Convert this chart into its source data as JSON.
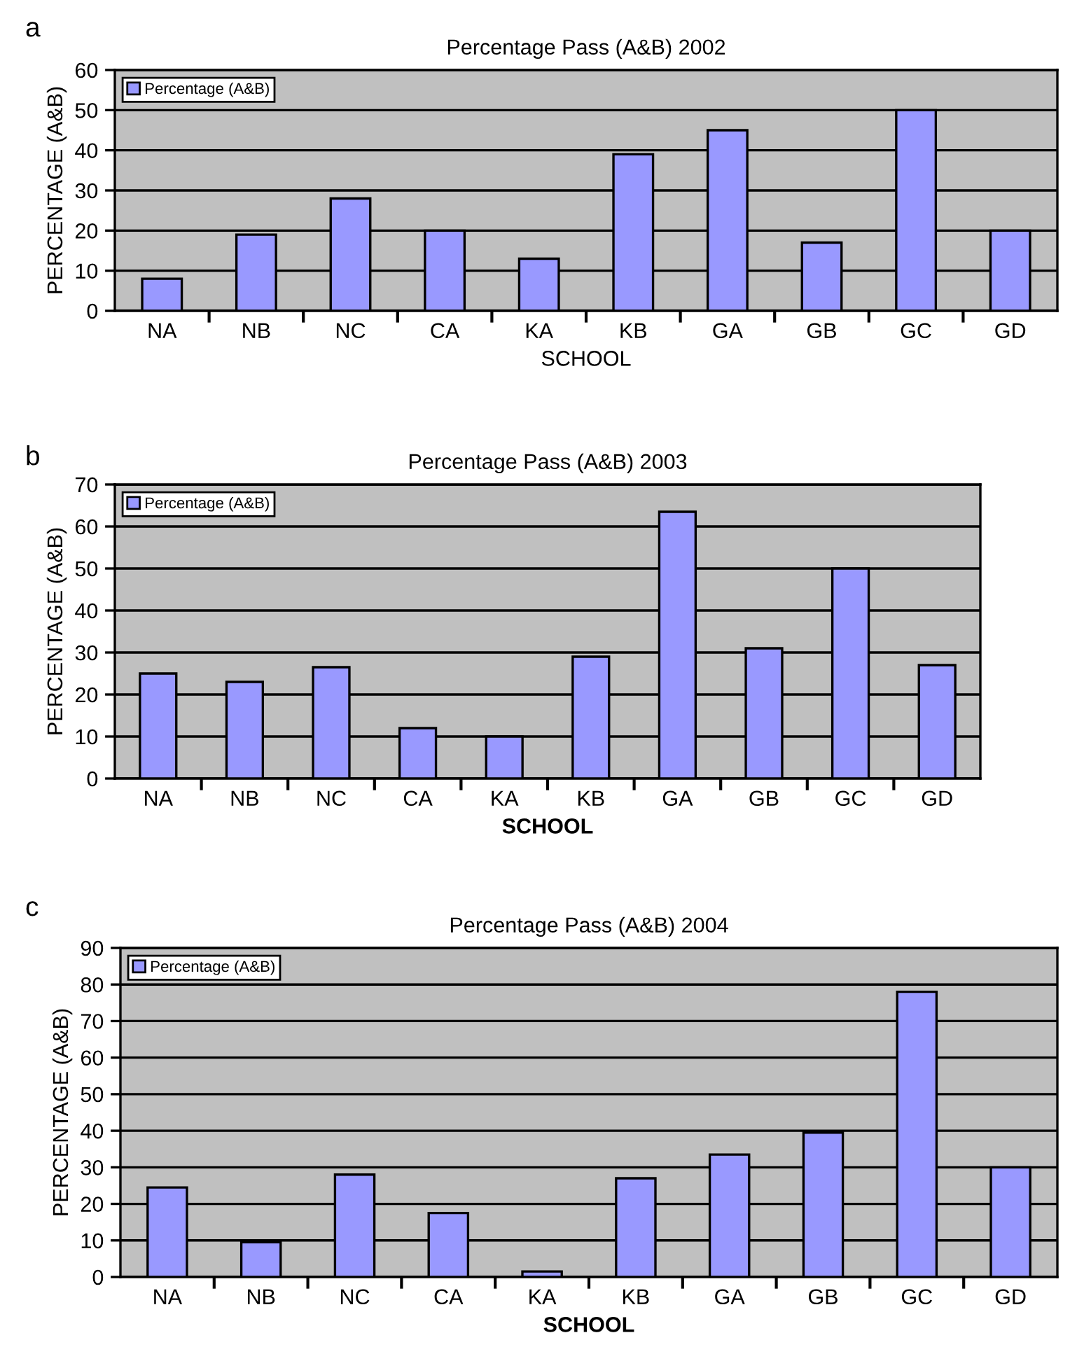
{
  "chart_data": [
    {
      "type": "bar",
      "title": "Percentage Pass (A&B) 2002",
      "xlabel": "SCHOOL",
      "ylabel": "PERCENTAGE (A&B)",
      "annotations": [
        "a"
      ],
      "categories": [
        "NA",
        "NB",
        "NC",
        "CA",
        "KA",
        "KB",
        "GA",
        "GB",
        "GC",
        "GD"
      ],
      "series": [
        {
          "name": "Percentage (A&B)",
          "color": "#9999ff",
          "values": [
            8,
            19,
            28,
            20,
            13,
            39,
            45,
            17,
            50,
            20
          ]
        }
      ],
      "ylim": [
        0,
        60
      ],
      "yticks": [
        0,
        10,
        20,
        30,
        40,
        50,
        60
      ],
      "grid": "y",
      "legend": "top left"
    },
    {
      "type": "bar",
      "title": "Percentage Pass (A&B) 2003",
      "xlabel": "SCHOOL",
      "ylabel": "PERCENTAGE (A&B)",
      "annotations": [
        "b"
      ],
      "categories": [
        "NA",
        "NB",
        "NC",
        "CA",
        "KA",
        "KB",
        "GA",
        "GB",
        "GC",
        "GD"
      ],
      "series": [
        {
          "name": "Percentage (A&B)",
          "color": "#9999ff",
          "values": [
            25,
            23,
            26.5,
            12,
            10,
            29,
            63.5,
            31,
            50,
            27
          ]
        }
      ],
      "ylim": [
        0,
        70
      ],
      "yticks": [
        0,
        10,
        20,
        30,
        40,
        50,
        60,
        70
      ],
      "grid": "y",
      "legend": "top left"
    },
    {
      "type": "bar",
      "title": "Percentage Pass (A&B) 2004",
      "xlabel": "SCHOOL",
      "ylabel": "PERCENTAGE (A&B)",
      "annotations": [
        "c"
      ],
      "categories": [
        "NA",
        "NB",
        "NC",
        "CA",
        "KA",
        "KB",
        "GA",
        "GB",
        "GC",
        "GD"
      ],
      "series": [
        {
          "name": "Percentage (A&B)",
          "color": "#9999ff",
          "values": [
            24.5,
            9.5,
            28,
            17.5,
            1.5,
            27,
            33.5,
            39.5,
            78,
            30
          ]
        }
      ],
      "ylim": [
        0,
        90
      ],
      "yticks": [
        0,
        10,
        20,
        30,
        40,
        50,
        60,
        70,
        80,
        90
      ],
      "grid": "y",
      "legend": "top left"
    }
  ]
}
